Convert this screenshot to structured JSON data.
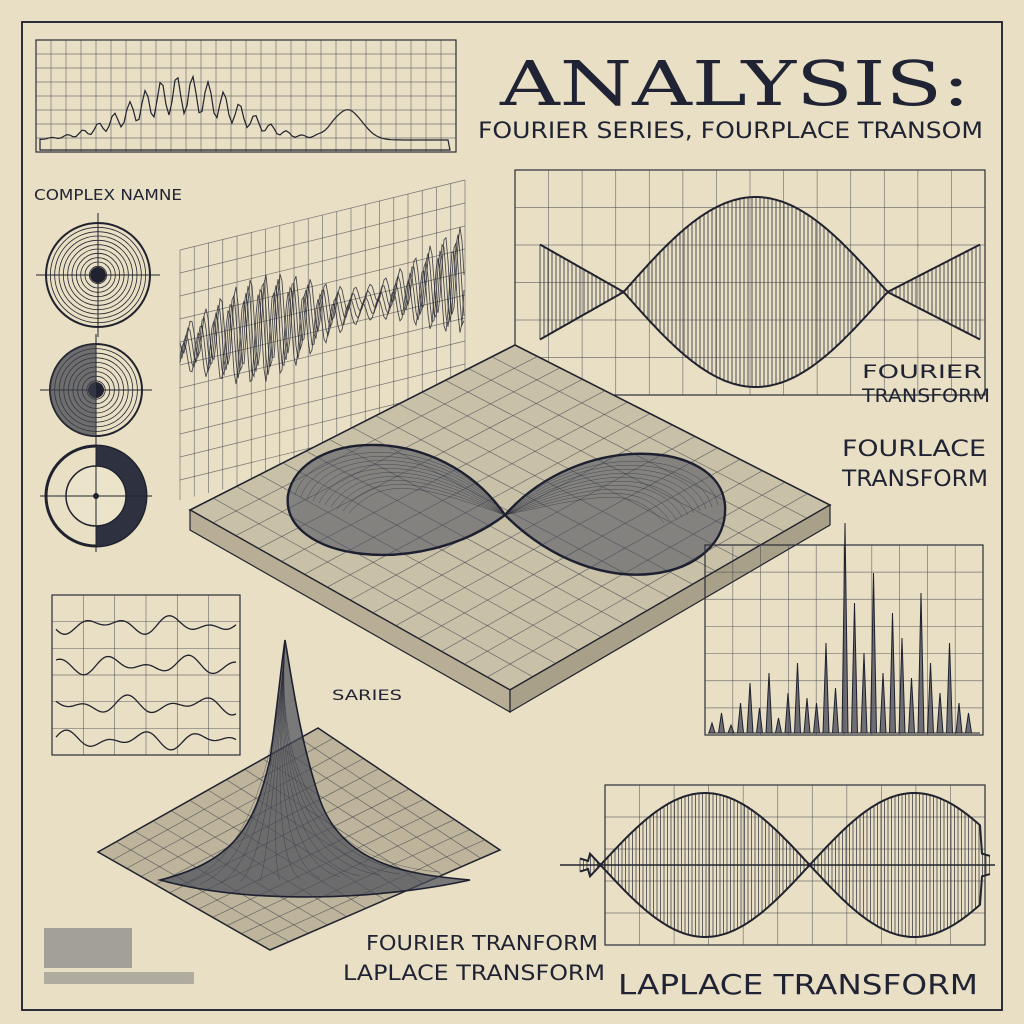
{
  "title": "ANALYSIS:",
  "subtitle": "FOURIER SERIES, FOURPLACE TRANSOM",
  "labels": {
    "complex_name": "COMPLEX NAMNE",
    "fourier_transform_right": "FOURIER TRANSFORM",
    "fourlace_transform": "FOURLACE TRANSFORM",
    "series_small": "SARIES",
    "fourier_tranform_bottom": "FOURIER TRANFORM",
    "laplace_transform_bottom": "LAPLACE TRANSFORM",
    "laplace_transform_corner": "LAPLACE TRANSFORM"
  },
  "colors": {
    "paper": "#e9dfc4",
    "ink": "#20232f",
    "grid": "#3a3d48"
  }
}
